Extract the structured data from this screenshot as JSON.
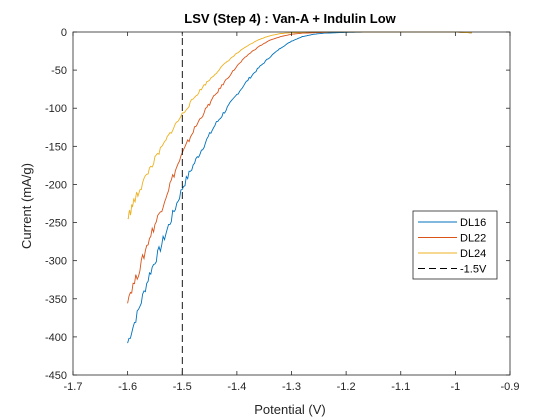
{
  "chart_data": {
    "type": "line",
    "title": "LSV (Step 4) : Van-A + Indulin Low",
    "xlabel": "Potential (V)",
    "ylabel": "Current (mA/g)",
    "xlim": [
      -1.7,
      -0.9
    ],
    "ylim": [
      -450,
      0
    ],
    "xticks": [
      -1.7,
      -1.6,
      -1.5,
      -1.4,
      -1.3,
      -1.2,
      -1.1,
      -1.0,
      -0.9
    ],
    "xtick_labels": [
      "-1.7",
      "-1.6",
      "-1.5",
      "-1.4",
      "-1.3",
      "-1.2",
      "-1.1",
      "-1",
      "-0.9"
    ],
    "yticks": [
      0,
      -50,
      -100,
      -150,
      -200,
      -250,
      -300,
      -350,
      -400,
      -450
    ],
    "ytick_labels": [
      "0",
      "-50",
      "-100",
      "-150",
      "-200",
      "-250",
      "-300",
      "-350",
      "-400",
      "-450"
    ],
    "grid": false,
    "legend_position": "right",
    "series": [
      {
        "name": "DL16",
        "color": "#0072BD",
        "x": [
          -1.6,
          -1.58,
          -1.56,
          -1.54,
          -1.52,
          -1.5,
          -1.48,
          -1.46,
          -1.44,
          -1.42,
          -1.4,
          -1.38,
          -1.36,
          -1.34,
          -1.32,
          -1.3,
          -1.28,
          -1.26,
          -1.24,
          -1.22,
          -1.2,
          -1.15,
          -1.1,
          -1.05,
          -1.0,
          -0.97
        ],
        "y": [
          -408,
          -365,
          -318,
          -283,
          -245,
          -205,
          -175,
          -148,
          -122,
          -102,
          -82,
          -63,
          -47,
          -33,
          -21,
          -12,
          -6,
          -3,
          -1.5,
          -1,
          -0.5,
          0,
          0,
          0,
          0,
          -1
        ]
      },
      {
        "name": "DL22",
        "color": "#D95319",
        "x": [
          -1.6,
          -1.58,
          -1.56,
          -1.54,
          -1.52,
          -1.5,
          -1.48,
          -1.46,
          -1.44,
          -1.42,
          -1.4,
          -1.38,
          -1.36,
          -1.34,
          -1.32,
          -1.3,
          -1.28,
          -1.26,
          -1.24,
          -1.22,
          -1.2,
          -1.15,
          -1.1,
          -1.05,
          -1.0,
          -0.97
        ],
        "y": [
          -350,
          -315,
          -270,
          -235,
          -195,
          -160,
          -130,
          -105,
          -83,
          -63,
          -45,
          -30,
          -19,
          -11,
          -6,
          -3,
          -1.5,
          -1,
          -0.5,
          0,
          0,
          0,
          0,
          0,
          0,
          -1
        ]
      },
      {
        "name": "DL24",
        "color": "#EDB120",
        "x": [
          -1.6,
          -1.59,
          -1.58,
          -1.56,
          -1.54,
          -1.52,
          -1.5,
          -1.48,
          -1.46,
          -1.44,
          -1.42,
          -1.4,
          -1.38,
          -1.36,
          -1.34,
          -1.32,
          -1.3,
          -1.28,
          -1.26,
          -1.24,
          -1.2,
          -1.15,
          -1.1,
          -1.05,
          -1.0,
          -0.97
        ],
        "y": [
          -245,
          -225,
          -210,
          -180,
          -155,
          -130,
          -108,
          -88,
          -70,
          -55,
          -40,
          -28,
          -18,
          -10,
          -5,
          -2,
          -1,
          -0.5,
          0,
          0,
          0,
          0,
          0,
          0,
          0,
          -1
        ]
      },
      {
        "name": "-1.5V",
        "color": "#000000",
        "dashed": true,
        "x": [
          -1.5,
          -1.5
        ],
        "y": [
          -450,
          0
        ]
      }
    ]
  }
}
